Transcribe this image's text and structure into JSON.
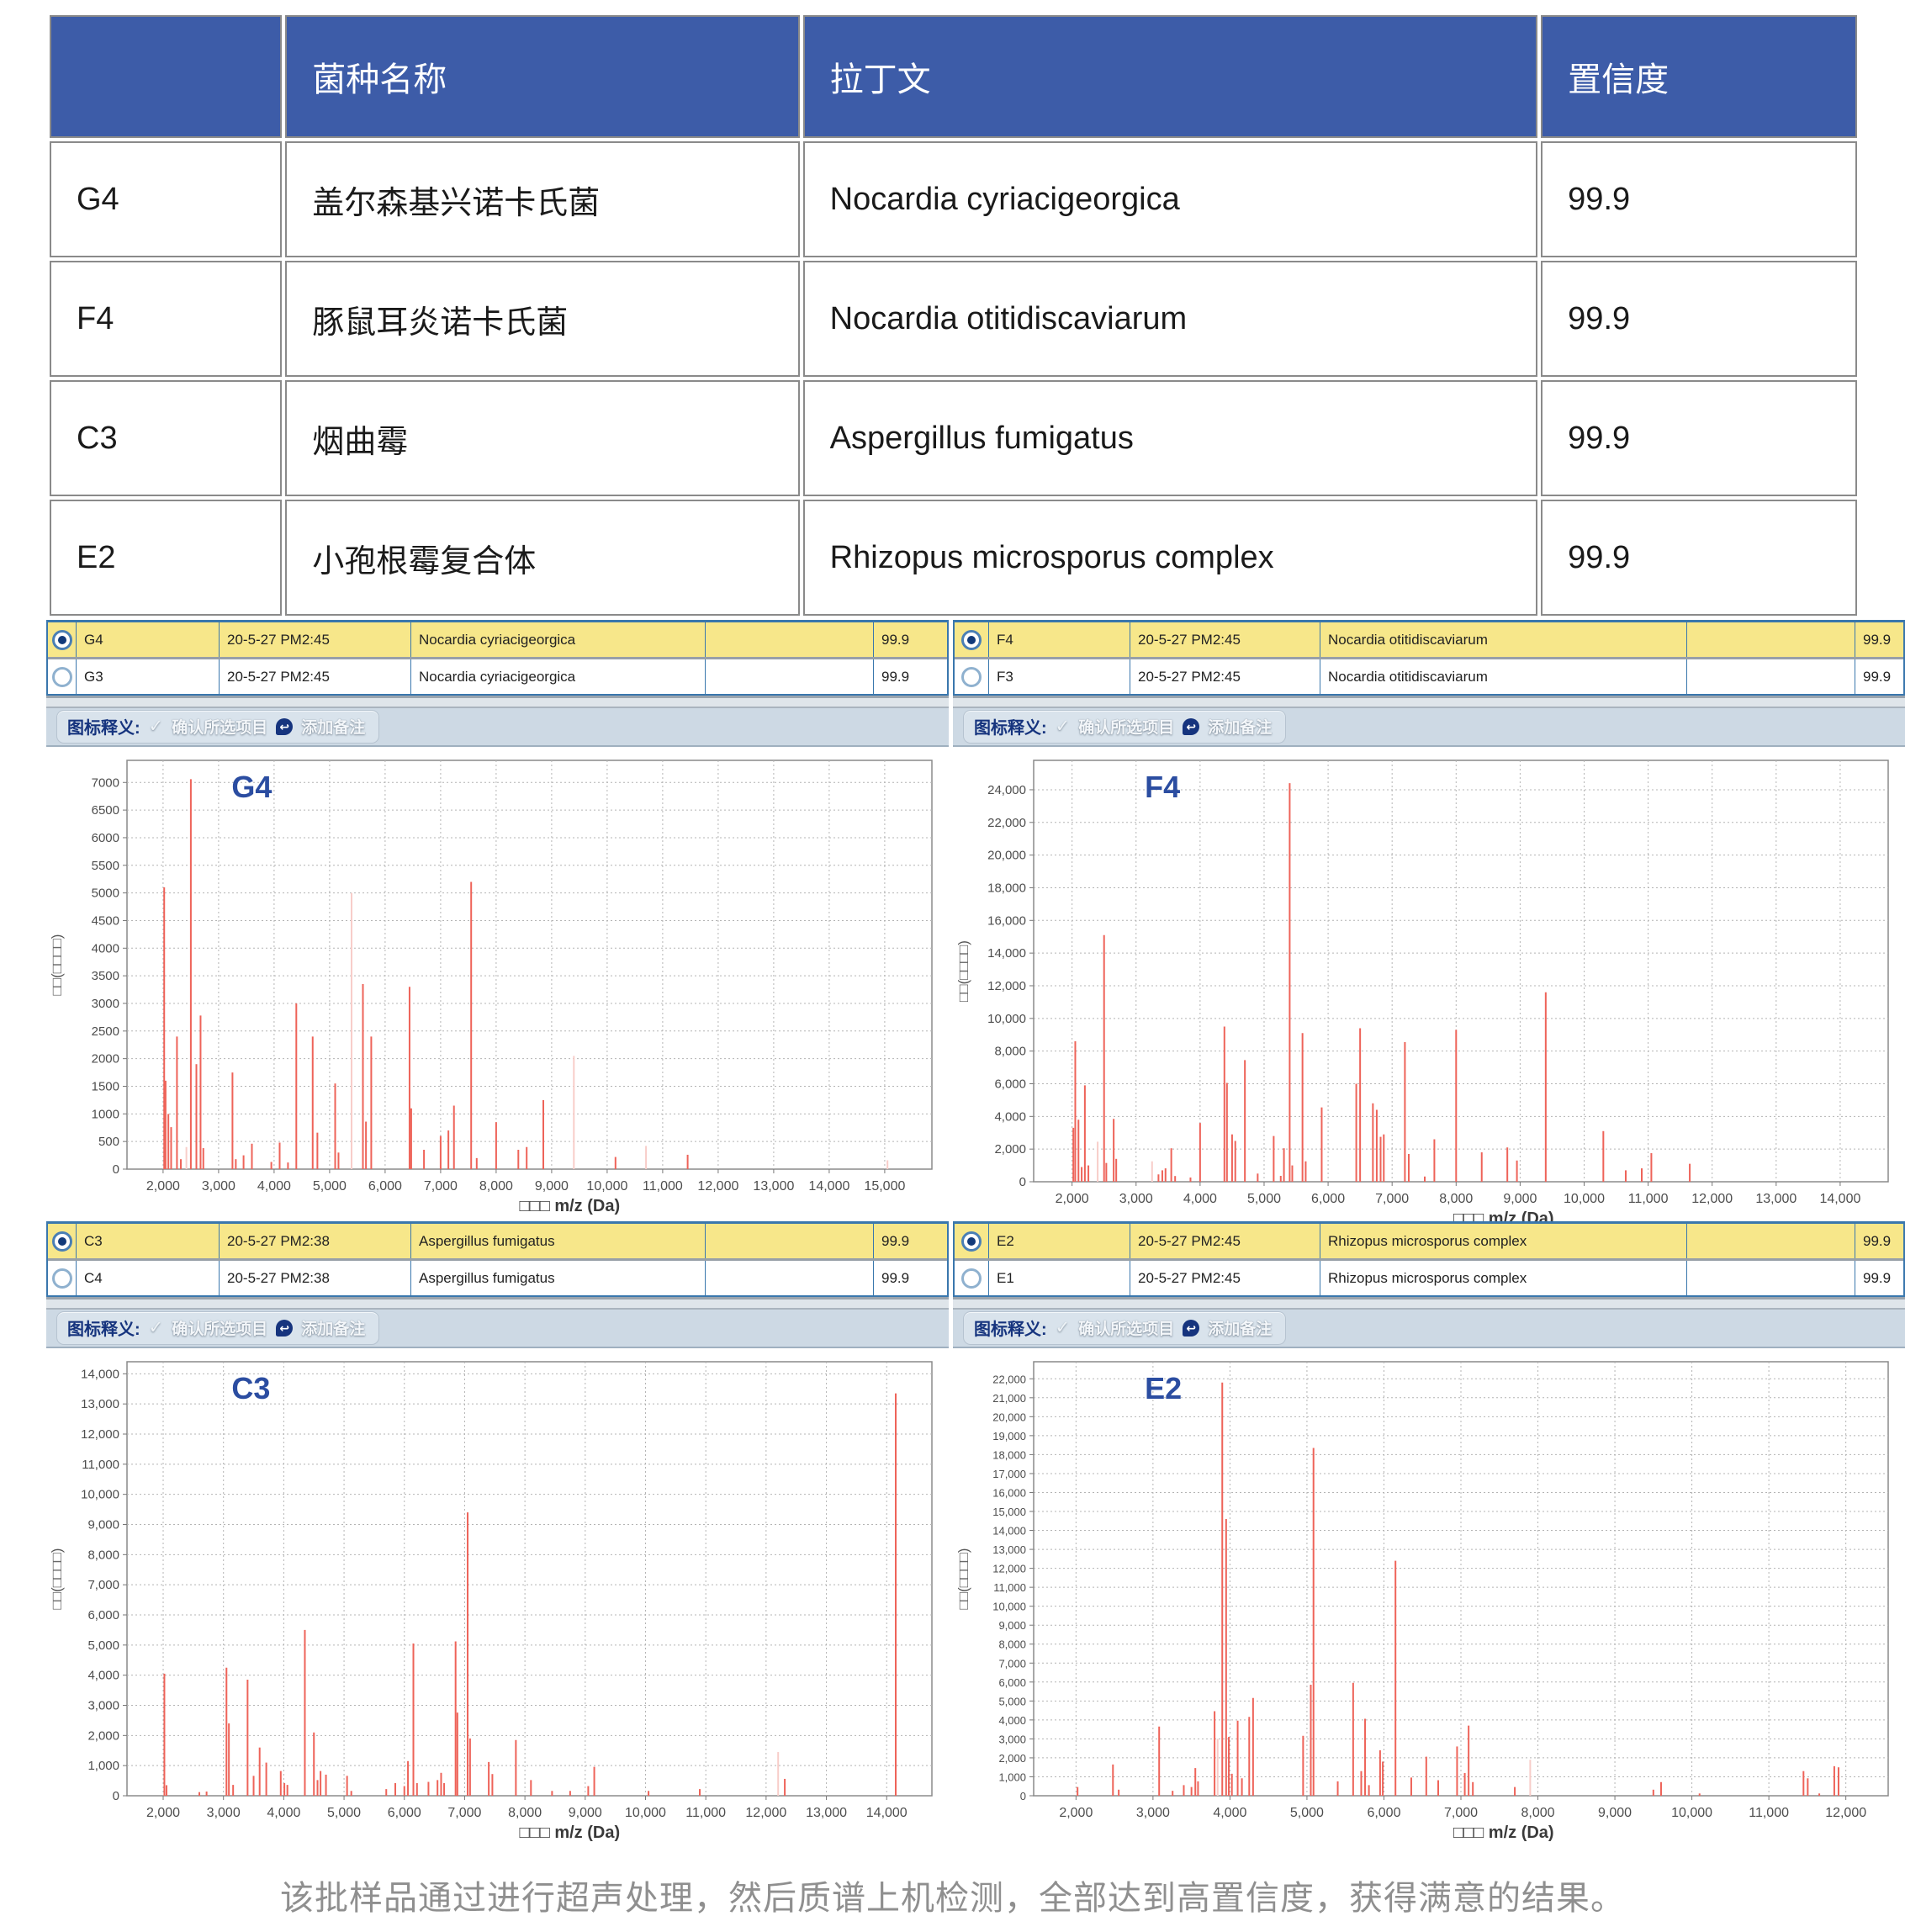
{
  "table": {
    "headers": [
      "",
      "菌种名称",
      "拉丁文",
      "置信度"
    ],
    "rows": [
      {
        "id": "G4",
        "name": "盖尔森基兴诺卡氏菌",
        "latin": "Nocardia cyriacigeorgica",
        "conf": "99.9"
      },
      {
        "id": "F4",
        "name": "豚鼠耳炎诺卡氏菌",
        "latin": "Nocardia otitidiscaviarum",
        "conf": "99.9"
      },
      {
        "id": "C3",
        "name": "烟曲霉",
        "latin": "Aspergillus fumigatus",
        "conf": "99.9"
      },
      {
        "id": "E2",
        "name": "小孢根霉复合体",
        "latin": "Rhizopus microsporus complex",
        "conf": "99.9"
      }
    ]
  },
  "toolbar": {
    "legend_label": "图标释义:",
    "check_icon": "✓",
    "confirm_label": "确认所选项目",
    "note_icon": "↩",
    "note_label": "添加备注"
  },
  "caption": {
    "text": "该批样品通过进行超声处理，然后质谱上机检测，全部达到高置信度，获得满意的结果。"
  },
  "panels": [
    {
      "label": "G4",
      "rows": [
        {
          "id": "G4",
          "time": "20-5-27 PM2:45",
          "species": "Nocardia cyriacigeorgica",
          "conf": "99.9"
        },
        {
          "id": "G3",
          "time": "20-5-27 PM2:45",
          "species": "Nocardia cyriacigeorgica",
          "conf": "99.9"
        }
      ]
    },
    {
      "label": "F4",
      "rows": [
        {
          "id": "F4",
          "time": "20-5-27 PM2:45",
          "species": "Nocardia otitidiscaviarum",
          "conf": "99.9"
        },
        {
          "id": "F3",
          "time": "20-5-27 PM2:45",
          "species": "Nocardia otitidiscaviarum",
          "conf": "99.9"
        }
      ]
    },
    {
      "label": "C3",
      "rows": [
        {
          "id": "C3",
          "time": "20-5-27 PM2:38",
          "species": "Aspergillus fumigatus",
          "conf": "99.9"
        },
        {
          "id": "C4",
          "time": "20-5-27 PM2:38",
          "species": "Aspergillus fumigatus",
          "conf": "99.9"
        }
      ]
    },
    {
      "label": "E2",
      "rows": [
        {
          "id": "E2",
          "time": "20-5-27 PM2:45",
          "species": "Rhizopus microsporus complex",
          "conf": "99.9"
        },
        {
          "id": "E1",
          "time": "20-5-27 PM2:45",
          "species": "Rhizopus microsporus complex",
          "conf": "99.9"
        }
      ]
    }
  ],
  "chart_data": [
    {
      "type": "bar",
      "title": "G4",
      "xlabel": "□□□ m/z (Da)",
      "ylabel": "□□(□□□□)",
      "xlim": [
        1350,
        15850
      ],
      "ylim": [
        0,
        7400
      ],
      "xticks": [
        2000,
        3000,
        4000,
        5000,
        6000,
        7000,
        8000,
        9000,
        10000,
        11000,
        12000,
        13000,
        14000,
        15000
      ],
      "yticks": [
        0,
        500,
        1000,
        1500,
        2000,
        2500,
        3000,
        3500,
        4000,
        4500,
        5000,
        5500,
        6000,
        6500,
        7000
      ],
      "y_comma": false,
      "ytick_fs": 15,
      "grid": true,
      "legend": "none",
      "peaks": [
        [
          2020,
          5100
        ],
        [
          2045,
          1600
        ],
        [
          2095,
          1000
        ],
        [
          2145,
          760
        ],
        [
          2250,
          2400
        ],
        [
          2320,
          180
        ],
        [
          2420,
          400,
          1
        ],
        [
          2500,
          7060
        ],
        [
          2600,
          1900
        ],
        [
          2675,
          2780
        ],
        [
          2725,
          380
        ],
        [
          3250,
          1750
        ],
        [
          3310,
          180
        ],
        [
          3450,
          250
        ],
        [
          3600,
          460
        ],
        [
          3950,
          130
        ],
        [
          4100,
          480
        ],
        [
          4250,
          120
        ],
        [
          4400,
          3000
        ],
        [
          4695,
          2400
        ],
        [
          4780,
          660
        ],
        [
          5100,
          1550
        ],
        [
          5160,
          300
        ],
        [
          5395,
          5000,
          1
        ],
        [
          5600,
          3350
        ],
        [
          5655,
          860
        ],
        [
          5750,
          2400
        ],
        [
          6440,
          3300
        ],
        [
          6470,
          1100
        ],
        [
          6700,
          350
        ],
        [
          7000,
          600
        ],
        [
          7140,
          700
        ],
        [
          7240,
          1150
        ],
        [
          7550,
          5200
        ],
        [
          7650,
          200
        ],
        [
          8000,
          850
        ],
        [
          8400,
          350
        ],
        [
          8550,
          400
        ],
        [
          8850,
          1250
        ],
        [
          9400,
          2050,
          1
        ],
        [
          10150,
          220
        ],
        [
          10700,
          420,
          1
        ],
        [
          11450,
          260
        ],
        [
          15050,
          160,
          1
        ]
      ]
    },
    {
      "type": "bar",
      "title": "F4",
      "xlabel": "□□□ m/z (Da)",
      "ylabel": "□□(□□□□)",
      "xlim": [
        1400,
        14750
      ],
      "ylim": [
        0,
        25800
      ],
      "xticks": [
        2000,
        3000,
        4000,
        5000,
        6000,
        7000,
        8000,
        9000,
        10000,
        11000,
        12000,
        13000,
        14000
      ],
      "yticks": [
        0,
        2000,
        4000,
        6000,
        8000,
        10000,
        12000,
        14000,
        16000,
        18000,
        20000,
        22000,
        24000
      ],
      "y_comma": true,
      "ytick_fs": 15,
      "grid": true,
      "legend": "none",
      "peaks": [
        [
          2020,
          3300
        ],
        [
          2050,
          8600
        ],
        [
          2100,
          3800
        ],
        [
          2150,
          900
        ],
        [
          2200,
          5900
        ],
        [
          2255,
          1000
        ],
        [
          2400,
          2450,
          1
        ],
        [
          2500,
          15100
        ],
        [
          2535,
          1150
        ],
        [
          2650,
          3850
        ],
        [
          2690,
          1400
        ],
        [
          3250,
          1250,
          1
        ],
        [
          3350,
          450
        ],
        [
          3410,
          700
        ],
        [
          3460,
          820
        ],
        [
          3550,
          2050
        ],
        [
          3610,
          350
        ],
        [
          3850,
          260
        ],
        [
          4000,
          3600
        ],
        [
          4380,
          9500
        ],
        [
          4420,
          6050
        ],
        [
          4500,
          2900
        ],
        [
          4550,
          2500
        ],
        [
          4700,
          7450
        ],
        [
          4900,
          500
        ],
        [
          5150,
          2800
        ],
        [
          5260,
          360
        ],
        [
          5310,
          2050
        ],
        [
          5400,
          24400
        ],
        [
          5440,
          1000
        ],
        [
          5600,
          9100
        ],
        [
          5650,
          1250
        ],
        [
          5900,
          4550
        ],
        [
          6440,
          6000
        ],
        [
          6500,
          9400
        ],
        [
          6700,
          4800
        ],
        [
          6760,
          4400
        ],
        [
          6820,
          2750
        ],
        [
          6870,
          2900
        ],
        [
          7200,
          8550
        ],
        [
          7260,
          1700
        ],
        [
          7510,
          320
        ],
        [
          7660,
          2600
        ],
        [
          8000,
          9300
        ],
        [
          8400,
          1800
        ],
        [
          8800,
          2100
        ],
        [
          8950,
          1300
        ],
        [
          9400,
          11600
        ],
        [
          10300,
          3100
        ],
        [
          10650,
          700
        ],
        [
          10900,
          820
        ],
        [
          11050,
          1750
        ],
        [
          11650,
          1100
        ]
      ]
    },
    {
      "type": "bar",
      "title": "C3",
      "xlabel": "□□□ m/z (Da)",
      "ylabel": "□□(□□□□)",
      "xlim": [
        1400,
        14750
      ],
      "ylim": [
        0,
        14400
      ],
      "xticks": [
        2000,
        3000,
        4000,
        5000,
        6000,
        7000,
        8000,
        9000,
        10000,
        11000,
        12000,
        13000,
        14000
      ],
      "yticks": [
        0,
        1000,
        2000,
        3000,
        4000,
        5000,
        6000,
        7000,
        8000,
        9000,
        10000,
        11000,
        12000,
        13000,
        14000
      ],
      "y_comma": true,
      "ytick_fs": 15,
      "grid": true,
      "legend": "none",
      "peaks": [
        [
          2020,
          4050
        ],
        [
          2055,
          350
        ],
        [
          2600,
          120
        ],
        [
          2720,
          140
        ],
        [
          3050,
          4250
        ],
        [
          3090,
          2400
        ],
        [
          3160,
          360
        ],
        [
          3400,
          3850
        ],
        [
          3500,
          660
        ],
        [
          3600,
          1600
        ],
        [
          3710,
          1100
        ],
        [
          3950,
          820
        ],
        [
          4010,
          420
        ],
        [
          4060,
          360
        ],
        [
          4350,
          5500
        ],
        [
          4500,
          2100
        ],
        [
          4560,
          520
        ],
        [
          4610,
          820
        ],
        [
          4700,
          700
        ],
        [
          5050,
          660
        ],
        [
          5120,
          160
        ],
        [
          5700,
          220
        ],
        [
          5850,
          420
        ],
        [
          6000,
          320
        ],
        [
          6060,
          1150
        ],
        [
          6150,
          5050
        ],
        [
          6210,
          420
        ],
        [
          6400,
          460
        ],
        [
          6550,
          520
        ],
        [
          6610,
          760
        ],
        [
          6660,
          420
        ],
        [
          6850,
          5120
        ],
        [
          6880,
          2760
        ],
        [
          7050,
          9400
        ],
        [
          7090,
          1900
        ],
        [
          7400,
          1120
        ],
        [
          7460,
          720
        ],
        [
          7850,
          1850
        ],
        [
          8100,
          520
        ],
        [
          8450,
          160
        ],
        [
          8750,
          160
        ],
        [
          9050,
          320
        ],
        [
          9150,
          960
        ],
        [
          10050,
          160
        ],
        [
          10900,
          220
        ],
        [
          12200,
          1450,
          1
        ],
        [
          12310,
          560
        ],
        [
          14150,
          13350
        ]
      ]
    },
    {
      "type": "bar",
      "title": "E2",
      "xlabel": "□□□ m/z (Da)",
      "ylabel": "□□(□□□□)",
      "xlim": [
        1450,
        12550
      ],
      "ylim": [
        0,
        22900
      ],
      "xticks": [
        2000,
        3000,
        4000,
        5000,
        6000,
        7000,
        8000,
        9000,
        10000,
        11000,
        12000
      ],
      "yticks": [
        0,
        1000,
        2000,
        3000,
        4000,
        5000,
        6000,
        7000,
        8000,
        9000,
        10000,
        11000,
        12000,
        13000,
        14000,
        15000,
        16000,
        17000,
        18000,
        19000,
        20000,
        21000,
        22000
      ],
      "y_comma": true,
      "ytick_fs": 13,
      "grid": true,
      "legend": "none",
      "peaks": [
        [
          2020,
          460
        ],
        [
          2480,
          1650
        ],
        [
          2555,
          320
        ],
        [
          3080,
          3650
        ],
        [
          3255,
          260
        ],
        [
          3400,
          560
        ],
        [
          3500,
          460
        ],
        [
          3550,
          1460
        ],
        [
          3585,
          760
        ],
        [
          3800,
          4460
        ],
        [
          3840,
          3000,
          1
        ],
        [
          3900,
          21800
        ],
        [
          3950,
          14600
        ],
        [
          3985,
          3100
        ],
        [
          4025,
          1160
        ],
        [
          4100,
          3960
        ],
        [
          4155,
          920
        ],
        [
          4250,
          4160
        ],
        [
          4300,
          5160
        ],
        [
          4950,
          3160
        ],
        [
          5050,
          5860
        ],
        [
          5085,
          18350
        ],
        [
          5400,
          760
        ],
        [
          5600,
          5960
        ],
        [
          5705,
          1300
        ],
        [
          5755,
          4060
        ],
        [
          5805,
          560
        ],
        [
          5950,
          2400
        ],
        [
          5985,
          1800
        ],
        [
          6150,
          12400
        ],
        [
          6355,
          960
        ],
        [
          6550,
          2060
        ],
        [
          6705,
          820
        ],
        [
          6950,
          2600
        ],
        [
          7050,
          1200
        ],
        [
          7100,
          3700
        ],
        [
          7155,
          720
        ],
        [
          7700,
          460
        ],
        [
          7900,
          1900,
          1
        ],
        [
          9500,
          320
        ],
        [
          9600,
          720
        ],
        [
          10100,
          120
        ],
        [
          11450,
          1300
        ],
        [
          11505,
          920
        ],
        [
          11655,
          120
        ],
        [
          11850,
          1560
        ],
        [
          11905,
          1500
        ]
      ]
    }
  ]
}
